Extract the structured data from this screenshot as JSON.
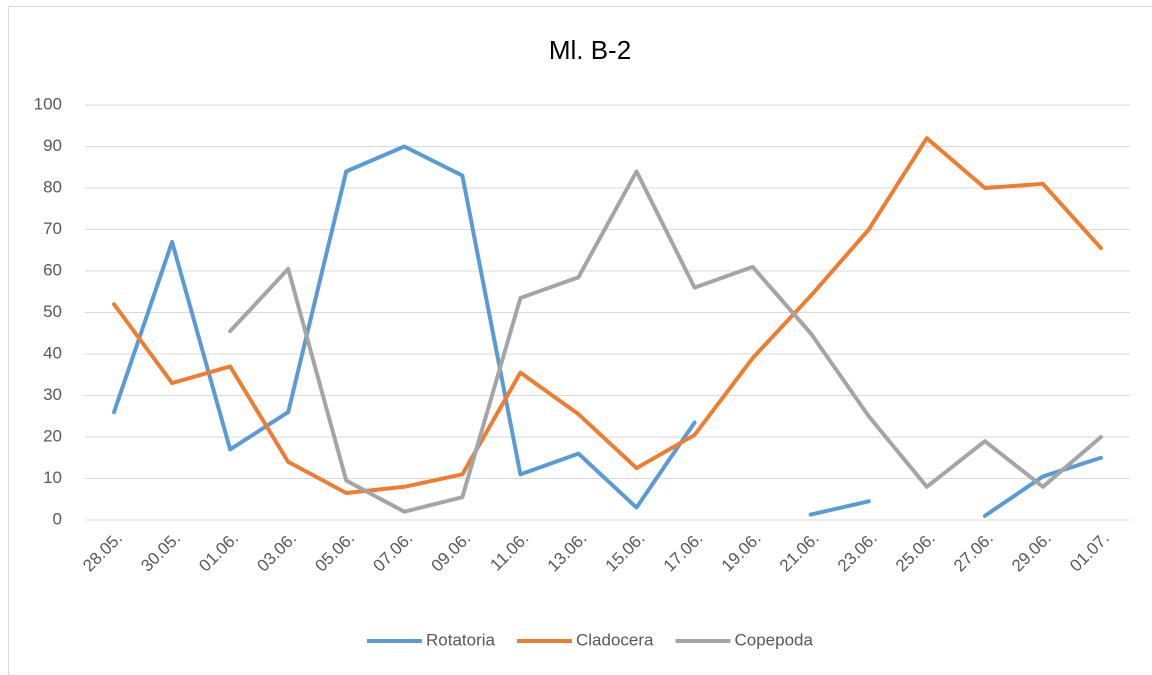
{
  "chart_data": {
    "type": "line",
    "title": "Ml. B-2",
    "categories": [
      "28.05.",
      "30.05.",
      "01.06.",
      "03.06.",
      "05.06.",
      "07.06.",
      "09.06.",
      "11.06.",
      "13.06.",
      "15.06.",
      "17.06.",
      "19.06.",
      "21.06.",
      "23.06.",
      "25.06.",
      "27.06.",
      "29.06.",
      "01.07."
    ],
    "series": [
      {
        "name": "Rotatoria",
        "color": "#5b9bd5",
        "values": [
          26,
          67,
          17,
          26,
          84,
          90,
          83,
          11,
          16,
          3,
          23.5,
          null,
          1.3,
          4.5,
          null,
          1,
          10.5,
          15
        ]
      },
      {
        "name": "Cladocera",
        "color": "#ed7d31",
        "values": [
          52,
          33,
          37,
          14,
          6.5,
          8,
          11,
          35.5,
          25.5,
          12.5,
          20.5,
          39,
          54,
          70,
          92,
          80,
          81,
          65.5
        ]
      },
      {
        "name": "Copepoda",
        "color": "#a5a5a5",
        "values": [
          null,
          null,
          45.5,
          60.5,
          9.5,
          2,
          5.5,
          53.5,
          58.5,
          84,
          56,
          61,
          45,
          25,
          8,
          19,
          8,
          20
        ]
      }
    ],
    "ylim": [
      0,
      100
    ],
    "yticks": [
      0,
      10,
      20,
      30,
      40,
      50,
      60,
      70,
      80,
      90,
      100
    ],
    "grid": true,
    "legend": "bottom"
  }
}
